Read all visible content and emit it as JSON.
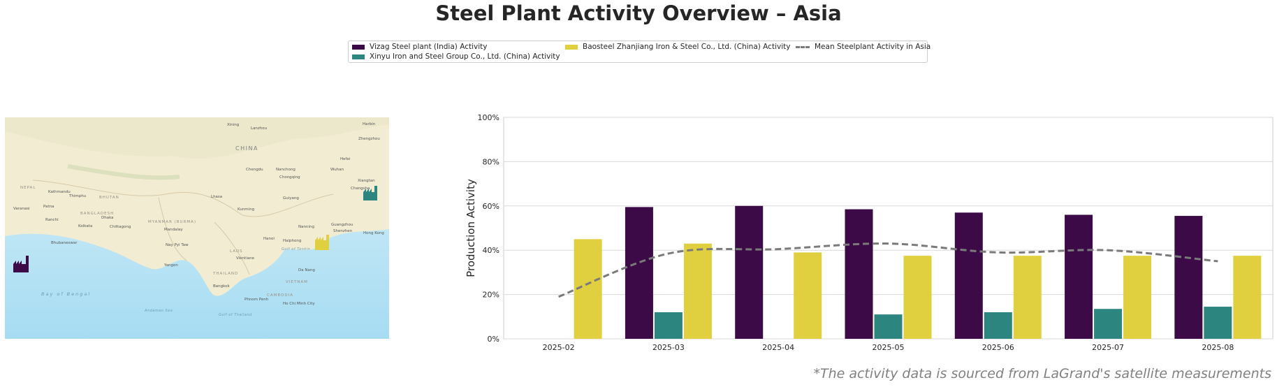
{
  "title": "Steel Plant Activity Overview – Asia",
  "footnote": "*The activity data is sourced from LaGrand's satellite measurements",
  "legend": [
    {
      "label": "Vizag Steel plant (India) Activity",
      "color": "#3b0a47",
      "kind": "bar"
    },
    {
      "label": "Xinyu Iron and Steel Group Co., Ltd. (China) Activity",
      "color": "#2d8580",
      "kind": "bar"
    },
    {
      "label": "Baosteel Zhanjiang Iron & Steel Co., Ltd. (China) Activity",
      "color": "#e0d040",
      "kind": "bar"
    },
    {
      "label": "Mean Steelplant Activity in Asia",
      "color": "#7a7a7a",
      "kind": "line"
    }
  ],
  "map": {
    "country_label": "CHINA",
    "places": [
      "Xining",
      "Lanzhou",
      "Harbin",
      "Zhengzhou",
      "Chengdu",
      "Nanchong",
      "Wuhan",
      "Hefei",
      "Chongqing",
      "Xiangtan",
      "Changsha",
      "Lhasa",
      "Kathmandu",
      "Thimphu",
      "Guiyang",
      "Kunming",
      "Nanning",
      "Guangzhou",
      "Shenzhen",
      "Hong Kong",
      "Hanoi",
      "Haiphong",
      "Vientiane",
      "Yangon",
      "Nay Pyi Taw",
      "Mandalay",
      "Chittagong",
      "Dhaka",
      "Kolkata",
      "Bhubaneswar",
      "Varanasi",
      "Patna",
      "Ranchi",
      "Da Nang",
      "Bangkok",
      "Phnom Penh",
      "Ho Chi Minh City",
      "THAILAND",
      "LAOS",
      "VIETNAM",
      "CAMBODIA",
      "MYANMAR (BURMA)",
      "BANGLADESH",
      "NEPAL",
      "BHUTAN",
      "Bay of Bengal",
      "Andaman Sea",
      "Gulf of Tonkin",
      "Gulf of Thailand"
    ],
    "icons": [
      {
        "name": "vizag-plant-icon",
        "color": "#3b0a47"
      },
      {
        "name": "xinyu-plant-icon",
        "color": "#2d8580"
      },
      {
        "name": "zhanjiang-plant-icon",
        "color": "#e0d040"
      }
    ]
  },
  "chart_data": {
    "type": "bar",
    "categories": [
      "2025-02",
      "2025-03",
      "2025-04",
      "2025-05",
      "2025-06",
      "2025-07",
      "2025-08"
    ],
    "series": [
      {
        "name": "Vizag Steel plant (India) Activity",
        "color": "#3b0a47",
        "values": [
          null,
          59.5,
          60,
          58.5,
          57,
          56,
          55.5
        ]
      },
      {
        "name": "Xinyu Iron and Steel Group Co., Ltd. (China) Activity",
        "color": "#2d8580",
        "values": [
          null,
          12,
          null,
          11,
          12,
          13.5,
          14.5
        ]
      },
      {
        "name": "Baosteel Zhanjiang Iron & Steel Co., Ltd. (China) Activity",
        "color": "#e0d040",
        "values": [
          45,
          43,
          39,
          37.5,
          37.5,
          37.5,
          37.5
        ]
      }
    ],
    "line": {
      "name": "Mean Steelplant Activity in Asia",
      "color": "#7a7a7a",
      "values": [
        19,
        38.5,
        40.5,
        43,
        39,
        40,
        35
      ]
    },
    "ylabel": "Production Activity",
    "xlabel": "",
    "ylim": [
      0,
      100
    ],
    "yticks": [
      "0%",
      "20%",
      "40%",
      "60%",
      "80%",
      "100%"
    ],
    "grid": true
  }
}
